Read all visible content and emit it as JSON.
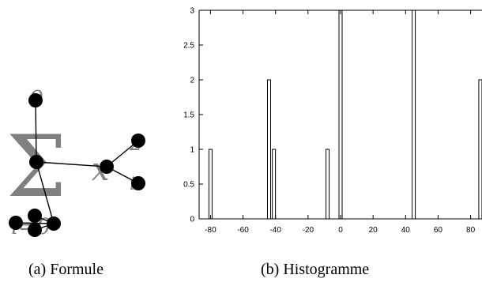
{
  "figure_a": {
    "caption": "(a) Formule",
    "glyphs": {
      "sum": "Σ",
      "upper": "0",
      "lower": "i=0",
      "var": "x",
      "sub": "i",
      "sup": "2"
    },
    "colors": {
      "glyph": "#808080",
      "node": "#000000",
      "edge": "#000000"
    }
  },
  "figure_b": {
    "caption": "(b) Histogramme"
  },
  "chart_data": {
    "type": "bar",
    "title": "",
    "xlabel": "",
    "ylabel": "",
    "xlim": [
      -87,
      87
    ],
    "ylim": [
      0,
      3
    ],
    "x_ticks": [
      -80,
      -60,
      -40,
      -20,
      0,
      20,
      40,
      60,
      80
    ],
    "y_ticks": [
      0,
      0.5,
      1,
      1.5,
      2,
      2.5,
      3
    ],
    "y_tick_labels": [
      "0",
      "0.5",
      "1",
      "1.5",
      "2",
      "2.5",
      "3"
    ],
    "grid": false,
    "bars": [
      {
        "x": -80,
        "value": 1
      },
      {
        "x": -44,
        "value": 2
      },
      {
        "x": -41,
        "value": 1
      },
      {
        "x": -8,
        "value": 1
      },
      {
        "x": 0,
        "value": 3
      },
      {
        "x": 45,
        "value": 3
      },
      {
        "x": 86,
        "value": 2
      }
    ]
  }
}
